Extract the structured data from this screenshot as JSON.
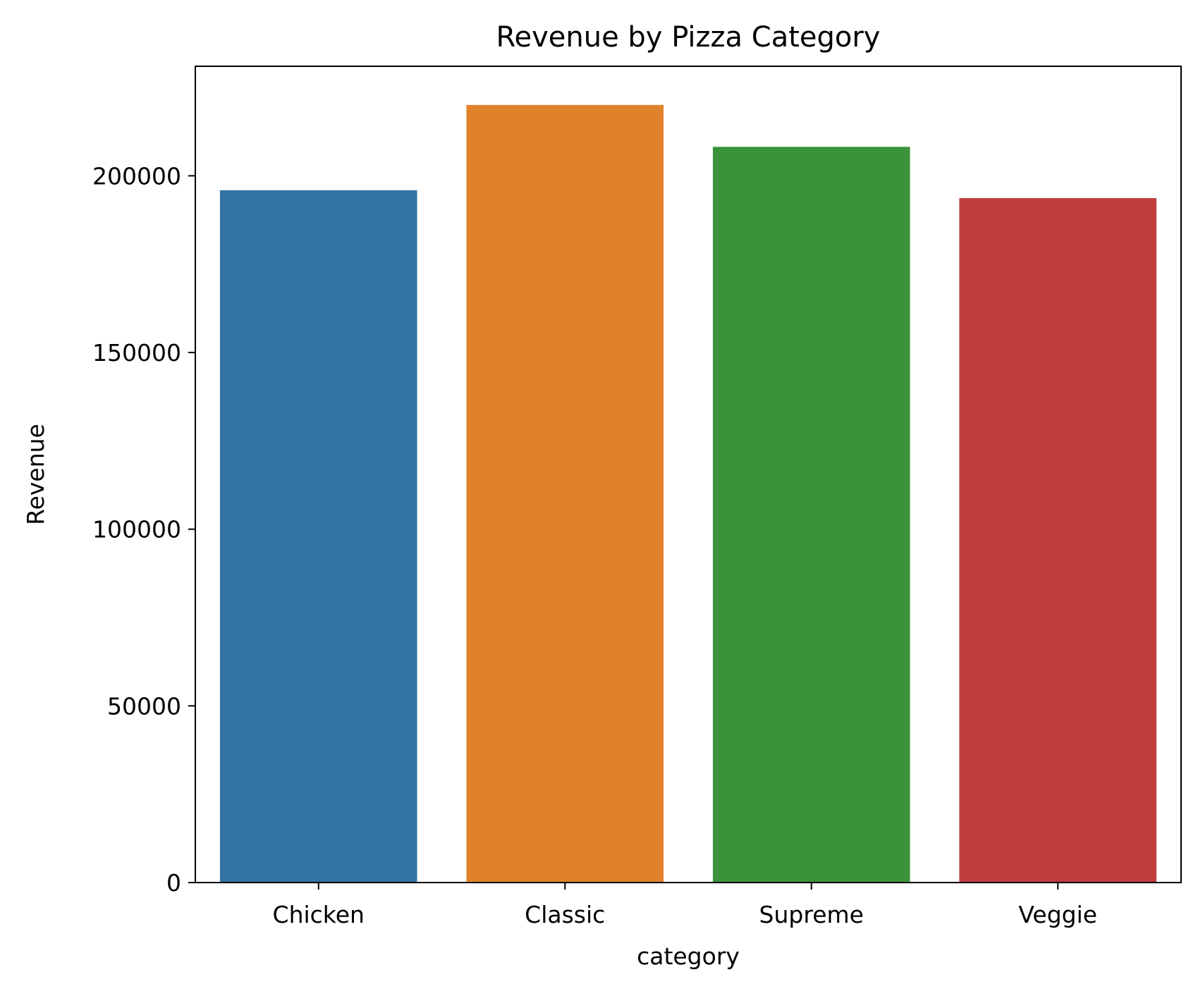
{
  "chart_data": {
    "type": "bar",
    "title": "Revenue by Pizza Category",
    "xlabel": "category",
    "ylabel": "Revenue",
    "categories": [
      "Chicken",
      "Classic",
      "Supreme",
      "Veggie"
    ],
    "values": [
      195920,
      220053,
      208197,
      193690
    ],
    "colors": [
      "#3274a1",
      "#e1812c",
      "#3a923a",
      "#c03d3e"
    ],
    "ylim": [
      0,
      231000
    ],
    "yticks": [
      0,
      50000,
      100000,
      150000,
      200000
    ],
    "ytick_labels": [
      "0",
      "50000",
      "100000",
      "150000",
      "200000"
    ],
    "grid": false,
    "legend": "none"
  }
}
